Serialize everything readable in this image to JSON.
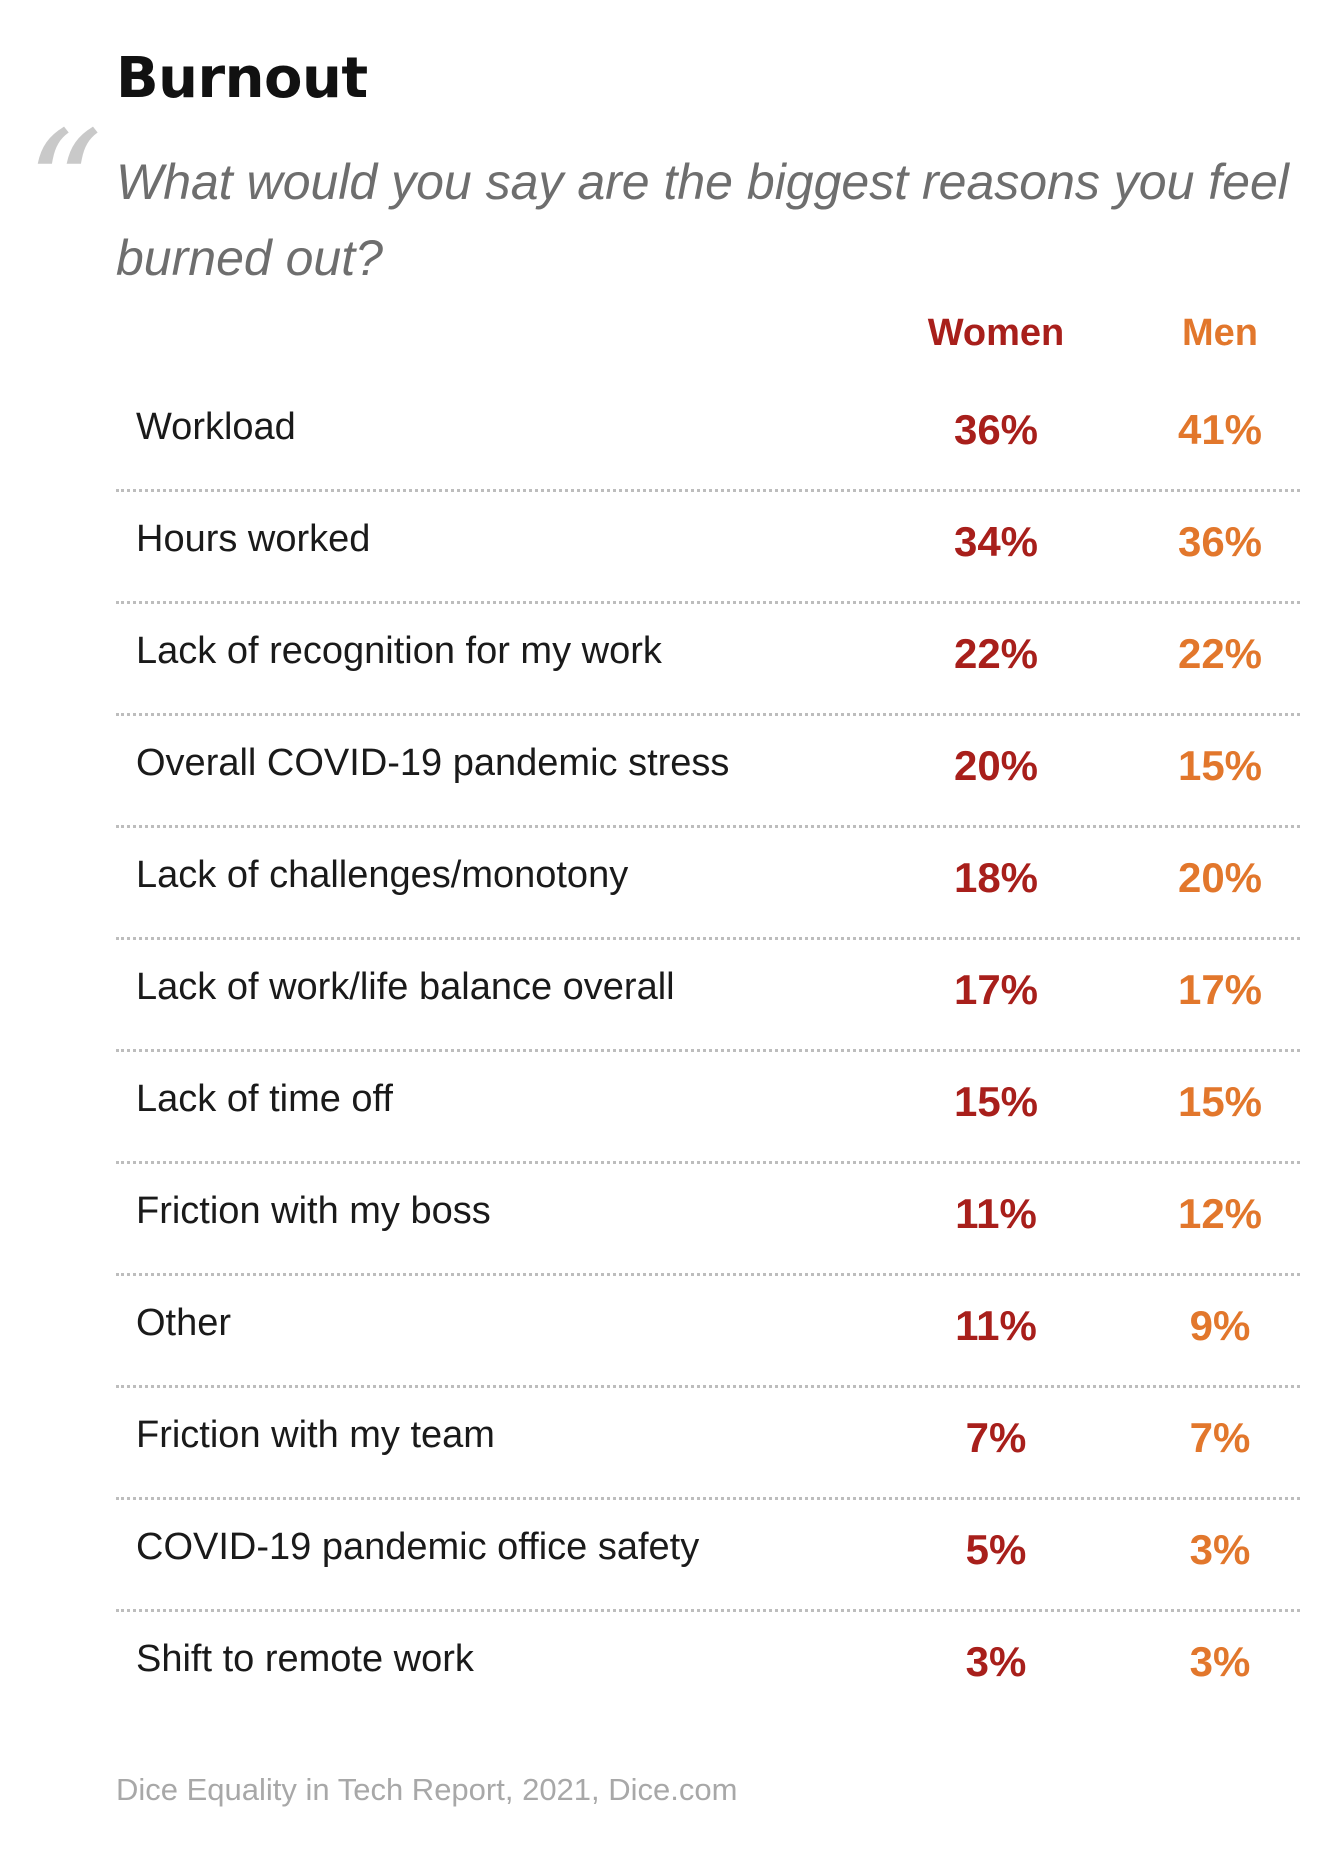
{
  "title": "Burnout",
  "question": "What would you say are the biggest reasons you feel burned out?",
  "source": "Dice Equality in Tech Report, 2021, Dice.com",
  "colors": {
    "women": "#a81f1b",
    "men": "#e2772c",
    "quote": "#c9c9c9",
    "question": "#6e6e6e",
    "source": "#a8a8a8"
  },
  "chart_data": {
    "type": "table",
    "title": "Burnout",
    "columns": [
      "Women",
      "Men"
    ],
    "rows": [
      {
        "label": "Workload",
        "women": "36%",
        "men": "41%"
      },
      {
        "label": "Hours worked",
        "women": "34%",
        "men": "36%"
      },
      {
        "label": "Lack of recognition for my work",
        "women": "22%",
        "men": "22%"
      },
      {
        "label": "Overall COVID-19 pandemic stress",
        "women": "20%",
        "men": "15%"
      },
      {
        "label": "Lack of challenges/monotony",
        "women": "18%",
        "men": "20%"
      },
      {
        "label": "Lack of work/life balance overall",
        "women": "17%",
        "men": "17%"
      },
      {
        "label": "Lack of time off",
        "women": "15%",
        "men": "15%"
      },
      {
        "label": "Friction with my boss",
        "women": "11%",
        "men": "12%"
      },
      {
        "label": "Other",
        "women": "11%",
        "men": "9%"
      },
      {
        "label": "Friction with my team",
        "women": "7%",
        "men": "7%"
      },
      {
        "label": "COVID-19 pandemic office safety",
        "women": "5%",
        "men": "3%"
      },
      {
        "label": "Shift to remote work",
        "women": "3%",
        "men": "3%"
      }
    ]
  }
}
